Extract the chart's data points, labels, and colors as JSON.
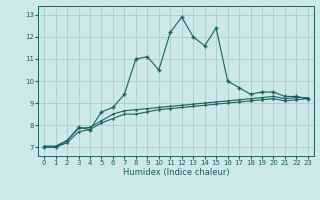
{
  "xlabel": "Humidex (Indice chaleur)",
  "background_color": "#cce8e8",
  "grid_color": "#aacccc",
  "line_color": "#1a6060",
  "xlim": [
    -0.5,
    23.5
  ],
  "ylim": [
    6.6,
    13.4
  ],
  "xticks": [
    0,
    1,
    2,
    3,
    4,
    5,
    6,
    7,
    8,
    9,
    10,
    11,
    12,
    13,
    14,
    15,
    16,
    17,
    18,
    19,
    20,
    21,
    22,
    23
  ],
  "yticks": [
    7,
    8,
    9,
    10,
    11,
    12,
    13
  ],
  "series1_x": [
    0,
    1,
    2,
    3,
    4,
    5,
    6,
    7,
    8,
    9,
    10,
    11,
    12,
    13,
    14,
    15,
    16,
    17,
    18,
    19,
    20,
    21,
    22,
    23
  ],
  "series1_y": [
    7.0,
    7.0,
    7.2,
    7.7,
    7.8,
    8.1,
    8.3,
    8.5,
    8.5,
    8.6,
    8.7,
    8.75,
    8.8,
    8.85,
    8.9,
    8.95,
    9.0,
    9.05,
    9.1,
    9.15,
    9.2,
    9.1,
    9.15,
    9.2
  ],
  "series2_x": [
    0,
    1,
    2,
    3,
    4,
    5,
    6,
    7,
    8,
    9,
    10,
    11,
    12,
    13,
    14,
    15,
    16,
    17,
    18,
    19,
    20,
    21,
    22,
    23
  ],
  "series2_y": [
    7.05,
    7.05,
    7.3,
    7.85,
    7.9,
    8.2,
    8.5,
    8.65,
    8.7,
    8.75,
    8.8,
    8.85,
    8.9,
    8.95,
    9.0,
    9.05,
    9.1,
    9.15,
    9.2,
    9.25,
    9.3,
    9.2,
    9.25,
    9.25
  ],
  "series3_x": [
    0,
    1,
    2,
    3,
    4,
    5,
    6,
    7,
    8,
    9,
    10,
    11,
    12,
    13,
    14,
    15,
    16,
    17,
    18,
    19,
    20,
    21,
    22,
    23
  ],
  "series3_y": [
    7.0,
    7.0,
    7.3,
    7.9,
    7.8,
    8.6,
    8.8,
    9.4,
    11.0,
    11.1,
    10.5,
    12.2,
    12.9,
    12.0,
    11.6,
    12.4,
    10.0,
    9.7,
    9.4,
    9.5,
    9.5,
    9.3,
    9.3,
    9.2
  ]
}
